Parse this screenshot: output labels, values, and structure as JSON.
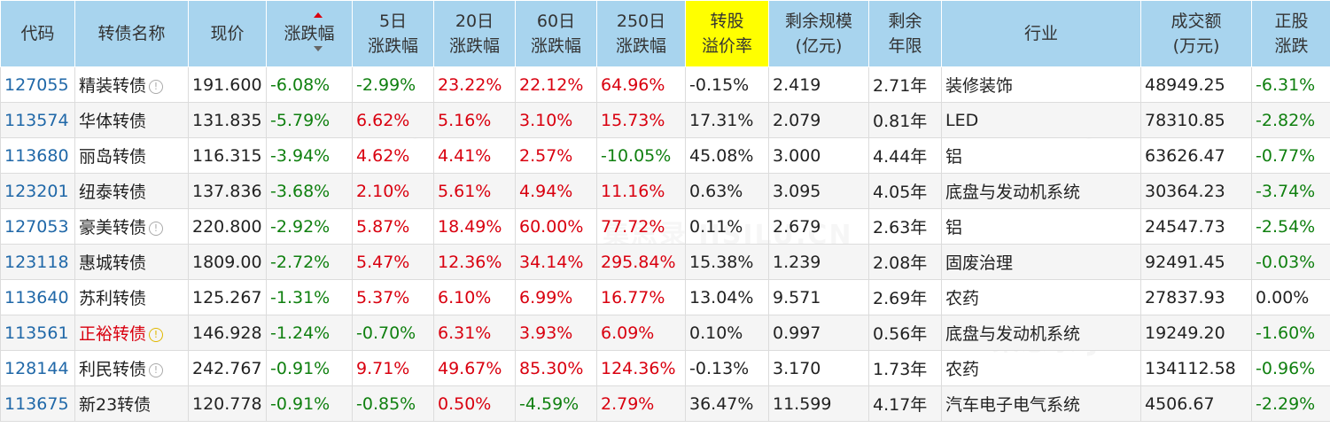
{
  "headers": {
    "code": "代码",
    "name": "转债名称",
    "price": "现价",
    "change": "涨跌幅",
    "d5_l1": "5日",
    "d5_l2": "涨跌幅",
    "d20_l1": "20日",
    "d20_l2": "涨跌幅",
    "d60_l1": "60日",
    "d60_l2": "涨跌幅",
    "d250_l1": "250日",
    "d250_l2": "涨跌幅",
    "premium_l1": "转股",
    "premium_l2": "溢价率",
    "scale_l1": "剩余规模",
    "scale_l2": "(亿元)",
    "years_l1": "剩余",
    "years_l2": "年限",
    "industry": "行业",
    "turnover_l1": "成交额",
    "turnover_l2": "(万元)",
    "stock_l1": "正股",
    "stock_l2": "涨跌"
  },
  "colors": {
    "header_bg": "#a8d4ee",
    "highlight": "#ffff00",
    "up": "#d9000f",
    "down": "#108010",
    "code": "#2068a8"
  },
  "watermark_text": "集思录 JISILU.CN",
  "rows": [
    {
      "code": "127055",
      "name": "精装转债",
      "icon": "info",
      "price": "191.600",
      "change": "-6.08%",
      "d5": "-2.99%",
      "d20": "23.22%",
      "d60": "22.12%",
      "d250": "64.96%",
      "premium": "-0.15%",
      "scale": "2.419",
      "years": "2.71年",
      "industry": "装修装饰",
      "turnover": "48949.25",
      "stock": "-6.31%"
    },
    {
      "code": "113574",
      "name": "华体转债",
      "icon": "",
      "price": "131.835",
      "change": "-5.79%",
      "d5": "6.62%",
      "d20": "5.16%",
      "d60": "3.10%",
      "d250": "15.73%",
      "premium": "17.31%",
      "scale": "2.079",
      "years": "0.81年",
      "industry": "LED",
      "turnover": "78310.85",
      "stock": "-2.82%"
    },
    {
      "code": "113680",
      "name": "丽岛转债",
      "icon": "",
      "price": "116.315",
      "change": "-3.94%",
      "d5": "4.62%",
      "d20": "4.41%",
      "d60": "2.57%",
      "d250": "-10.05%",
      "premium": "45.08%",
      "scale": "3.000",
      "years": "4.44年",
      "industry": "铝",
      "turnover": "63626.47",
      "stock": "-0.77%"
    },
    {
      "code": "123201",
      "name": "纽泰转债",
      "icon": "",
      "price": "137.836",
      "change": "-3.68%",
      "d5": "2.10%",
      "d20": "5.61%",
      "d60": "4.94%",
      "d250": "11.16%",
      "premium": "0.63%",
      "scale": "3.095",
      "years": "4.05年",
      "industry": "底盘与发动机系统",
      "turnover": "30364.23",
      "stock": "-3.74%"
    },
    {
      "code": "127053",
      "name": "豪美转债",
      "icon": "info",
      "price": "220.800",
      "change": "-2.92%",
      "d5": "5.87%",
      "d20": "18.49%",
      "d60": "60.00%",
      "d250": "77.72%",
      "premium": "0.11%",
      "scale": "2.679",
      "years": "2.63年",
      "industry": "铝",
      "turnover": "24547.73",
      "stock": "-2.54%"
    },
    {
      "code": "123118",
      "name": "惠城转债",
      "icon": "",
      "price": "1809.00",
      "change": "-2.72%",
      "d5": "5.47%",
      "d20": "12.36%",
      "d60": "34.14%",
      "d250": "295.84%",
      "premium": "15.38%",
      "scale": "1.239",
      "years": "2.08年",
      "industry": "固废治理",
      "turnover": "92491.45",
      "stock": "-0.03%"
    },
    {
      "code": "113640",
      "name": "苏利转债",
      "icon": "",
      "price": "125.267",
      "change": "-1.31%",
      "d5": "5.37%",
      "d20": "6.10%",
      "d60": "6.99%",
      "d250": "16.77%",
      "premium": "13.04%",
      "scale": "9.571",
      "years": "2.69年",
      "industry": "农药",
      "turnover": "27837.93",
      "stock": "0.00%"
    },
    {
      "code": "113561",
      "name": "正裕转债",
      "icon": "warn",
      "price": "146.928",
      "change": "-1.24%",
      "d5": "-0.70%",
      "d20": "6.31%",
      "d60": "3.93%",
      "d250": "6.09%",
      "premium": "0.10%",
      "scale": "0.997",
      "years": "0.56年",
      "industry": "底盘与发动机系统",
      "turnover": "19249.20",
      "stock": "-1.60%"
    },
    {
      "code": "128144",
      "name": "利民转债",
      "icon": "info",
      "price": "242.767",
      "change": "-0.91%",
      "d5": "9.71%",
      "d20": "49.67%",
      "d60": "85.30%",
      "d250": "124.36%",
      "premium": "-0.13%",
      "scale": "3.170",
      "years": "1.73年",
      "industry": "农药",
      "turnover": "134112.58",
      "stock": "-0.96%"
    },
    {
      "code": "113675",
      "name": "新23转债",
      "icon": "",
      "price": "120.778",
      "change": "-0.91%",
      "d5": "-0.85%",
      "d20": "0.50%",
      "d60": "-4.59%",
      "d250": "2.79%",
      "premium": "36.47%",
      "scale": "11.599",
      "years": "4.17年",
      "industry": "汽车电子电气系统",
      "turnover": "4506.67",
      "stock": "-2.29%"
    }
  ]
}
